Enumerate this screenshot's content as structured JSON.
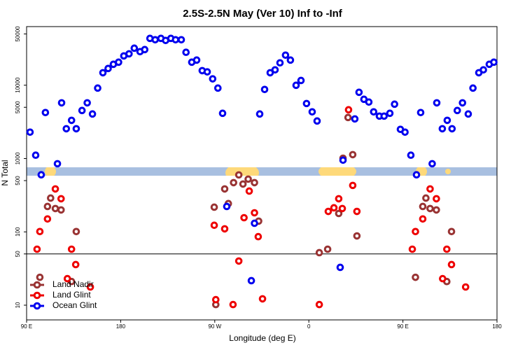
{
  "chart_data": {
    "type": "scatter",
    "title": "2.5S-2.5N May (Ver 10)   Inf to -Inf",
    "x_label": "Longitude (deg E)",
    "y_label": "N Total",
    "log_y": true,
    "reference_line": 50,
    "legend": "bottom-left",
    "xlim": [
      90,
      540
    ],
    "xticks": [
      {
        "value": 90,
        "label": "90 E"
      },
      180,
      {
        "value": 270,
        "label": "90 W"
      },
      {
        "value": 360,
        "label": "0"
      },
      {
        "value": 450,
        "label": "90 E"
      },
      {
        "value": 540,
        "label": "180"
      }
    ],
    "ylim": [
      6.3,
      63000
    ],
    "yticks": [
      10,
      50,
      100,
      500,
      1000,
      5000,
      10000,
      50000
    ],
    "series": [
      {
        "name": "Land Nadir",
        "color": "#993333",
        "x": [
          102.7,
          110,
          113,
          117.5,
          123,
          133,
          137.5,
          269.5,
          271,
          279.5,
          283,
          288,
          293,
          297,
          302,
          308,
          312,
          370,
          378,
          388.6,
          392.7,
          397.5,
          402,
          406,
          462,
          469,
          472,
          476,
          482,
          492,
          496.5
        ],
        "values": [
          24,
          222,
          289,
          208,
          199,
          21,
          101,
          217,
          10.2,
          385,
          243,
          469,
          598,
          449,
          524,
          469,
          140,
          52,
          58,
          178,
          1010,
          3630,
          1130,
          88,
          24,
          222,
          289,
          208,
          199,
          21,
          101
        ]
      },
      {
        "name": "Land Glint",
        "color": "#ee0000",
        "x": [
          100,
          102.7,
          110,
          117.5,
          123,
          129,
          133,
          137,
          151,
          269.5,
          271,
          279.5,
          287.5,
          293,
          298,
          303,
          308,
          311.6,
          315.7,
          370,
          378.6,
          384,
          388.6,
          392,
          398,
          402,
          406,
          459,
          462,
          469,
          476,
          482,
          488,
          492,
          496.5,
          510
        ],
        "values": [
          58,
          101,
          150,
          385,
          283,
          23,
          58,
          35.8,
          17.7,
          123,
          11.9,
          110,
          10.2,
          40,
          156,
          360,
          182,
          86,
          12.2,
          10.2,
          190,
          213,
          283,
          208,
          4620,
          430,
          190,
          58,
          101,
          150,
          385,
          283,
          23,
          58,
          35.8,
          17.7
        ]
      },
      {
        "name": "Ocean Glint",
        "color": "#0000ee",
        "x": [
          93.3,
          98.7,
          104,
          108,
          119.5,
          123.5,
          128,
          133,
          137.5,
          143,
          148,
          153,
          158,
          163,
          168,
          173,
          178,
          183,
          188,
          193,
          198.5,
          203,
          208,
          213,
          218.5,
          223,
          228,
          232.5,
          238,
          242.5,
          248,
          252.7,
          258,
          262.8,
          268,
          273,
          277.5,
          281.5,
          305,
          308,
          313,
          317.7,
          323,
          327.7,
          332.4,
          337.7,
          342.4,
          347.8,
          352.5,
          357.8,
          363.2,
          367.9,
          390,
          392.7,
          404,
          408,
          412.7,
          417.4,
          422,
          427.5,
          432,
          437.5,
          442,
          447.6,
          452,
          457.6,
          463,
          467,
          478,
          482.4,
          487.7,
          492.4,
          497,
          502,
          507,
          512.5,
          517,
          522.6,
          527,
          532.6,
          537
        ],
        "values": [
          2290,
          1110,
          600,
          4240,
          850,
          5750,
          2550,
          3320,
          2550,
          4520,
          5750,
          4050,
          9140,
          14800,
          16900,
          19300,
          20600,
          25100,
          26800,
          32000,
          28700,
          30600,
          43500,
          41700,
          43500,
          40800,
          43500,
          41700,
          41700,
          28100,
          20600,
          22000,
          15800,
          15200,
          12200,
          9140,
          4140,
          222,
          21.6,
          131,
          4050,
          8750,
          14800,
          16200,
          20200,
          25700,
          22000,
          9980,
          11600,
          5630,
          4330,
          3250,
          32.8,
          950,
          3470,
          8010,
          6430,
          5890,
          4330,
          3790,
          3790,
          4140,
          5510,
          2500,
          2290,
          1110,
          600,
          4240,
          850,
          5750,
          2550,
          3320,
          2550,
          4520,
          5750,
          4050,
          9140,
          14800,
          16200,
          19300,
          20600
        ]
      }
    ]
  }
}
